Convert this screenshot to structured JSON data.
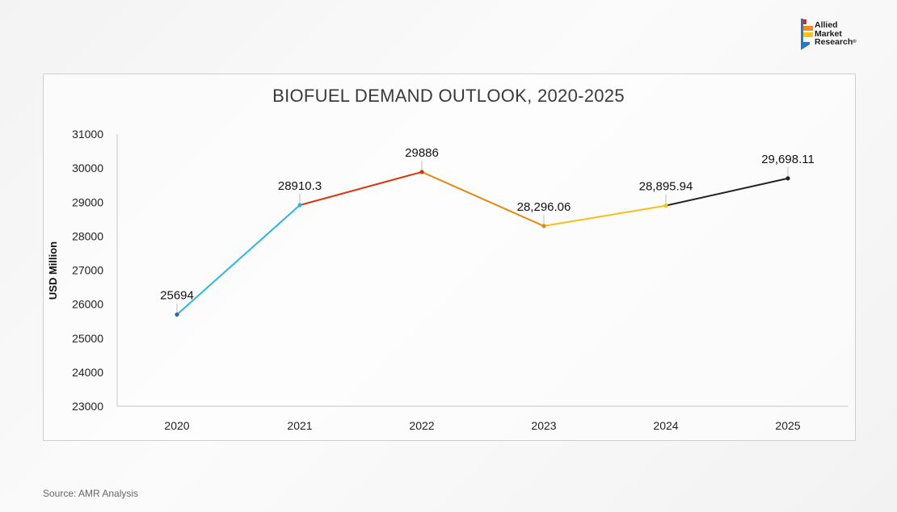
{
  "logo": {
    "lines": [
      "Allied",
      "Market",
      "Research"
    ],
    "registered": "®",
    "colors": [
      "#d9281a",
      "#f28a1e",
      "#f7c619",
      "#2b78c2"
    ]
  },
  "source_note": "Source: AMR Analysis",
  "chart_data": {
    "type": "line",
    "title": "BIOFUEL DEMAND OUTLOOK, 2020-2025",
    "xlabel": "",
    "ylabel": "USD Million",
    "categories": [
      "2020",
      "2021",
      "2022",
      "2023",
      "2024",
      "2025"
    ],
    "values": [
      25694,
      28910.3,
      29886,
      28296.06,
      28895.94,
      29698.11
    ],
    "data_labels": [
      "25694",
      "28910.3",
      "29886",
      "28,296.06",
      "28,895.94",
      "29,698.11"
    ],
    "ylim": [
      23000,
      31000
    ],
    "yticks": [
      23000,
      24000,
      25000,
      26000,
      27000,
      28000,
      29000,
      30000,
      31000
    ],
    "segment_colors": [
      "#29b6e0",
      "#d9350f",
      "#e08a14",
      "#efc21a",
      "#222222"
    ],
    "grid": false,
    "legend": "none"
  }
}
